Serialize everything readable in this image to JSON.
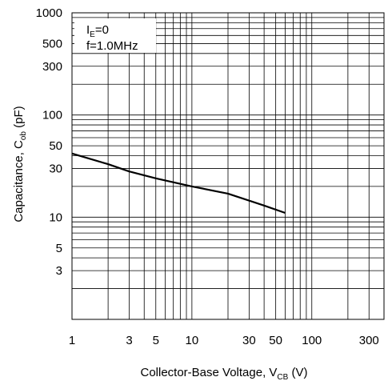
{
  "chart_data": {
    "type": "line",
    "title": "",
    "xlabel": {
      "main": "Collector-Base Voltage, V",
      "sub": "CB",
      "unit": " (V)"
    },
    "ylabel": {
      "main": "Capacitance, C",
      "sub": "ob",
      "unit": " (pF)"
    },
    "x_scale": "log",
    "y_scale": "log",
    "xlim": [
      1,
      400
    ],
    "ylim": [
      1,
      1000
    ],
    "x_ticks": [
      1,
      3,
      5,
      10,
      30,
      50,
      100,
      300
    ],
    "x_tick_labels": [
      "1",
      "3",
      "5",
      "10",
      "30",
      "50",
      "100",
      "300"
    ],
    "y_ticks": [
      3,
      5,
      10,
      30,
      50,
      100,
      300,
      500,
      1000
    ],
    "y_tick_labels": [
      "3",
      "5",
      "10",
      "30",
      "50",
      "100",
      "300",
      "500",
      "1000"
    ],
    "grid": true,
    "annotations": [
      {
        "main": "I",
        "sub": "E",
        "rest": "=0"
      },
      {
        "main": "f=1.0MHz",
        "sub": "",
        "rest": ""
      }
    ],
    "series": [
      {
        "color": "#000000",
        "x": [
          1,
          2,
          3,
          5,
          10,
          20,
          40,
          60
        ],
        "y": [
          42,
          33,
          28,
          24,
          20,
          17,
          13,
          11
        ]
      }
    ]
  }
}
